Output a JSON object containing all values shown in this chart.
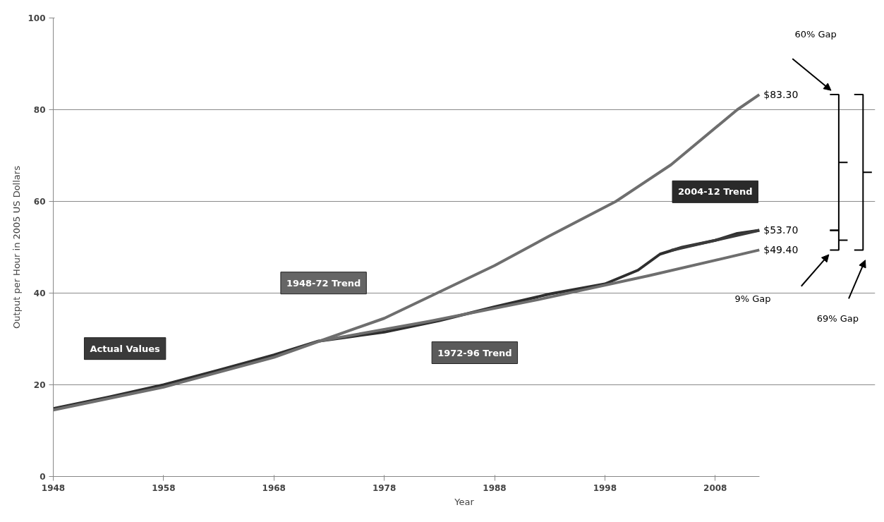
{
  "chart_data": {
    "type": "line",
    "xlabel": "Year",
    "ylabel": "Output per Hour in 2005 US Dollars",
    "xlim": [
      1948,
      2012
    ],
    "ylim": [
      0,
      100
    ],
    "xticks": [
      1948,
      1958,
      1968,
      1978,
      1988,
      1998,
      2008
    ],
    "yticks": [
      0,
      20,
      40,
      60,
      80,
      100
    ],
    "grid": "y",
    "marker": "none",
    "line_style": "solid",
    "series": [
      {
        "name": "Actual Values",
        "color": "#2e2e2e",
        "x": [
          1948,
          1953,
          1958,
          1963,
          1968,
          1972,
          1975,
          1978,
          1983,
          1988,
          1993,
          1998,
          2001,
          2003,
          2005,
          2008,
          2010,
          2012
        ],
        "values": [
          14.8,
          17.3,
          20.0,
          23.2,
          26.5,
          29.5,
          30.5,
          31.5,
          34.0,
          37.0,
          39.8,
          42.0,
          45.0,
          48.5,
          50.0,
          51.5,
          53.0,
          53.7
        ],
        "value_labels": [
          null,
          null,
          null,
          null,
          null,
          null,
          null,
          null,
          null,
          null,
          null,
          null,
          null,
          null,
          null,
          null,
          null,
          "$53.70"
        ]
      },
      {
        "name": "1948-72 Trend",
        "color": "#6e6e6e",
        "x": [
          1948,
          1958,
          1968,
          1978,
          1988,
          1993,
          1999,
          2004,
          2010,
          2012
        ],
        "values": [
          14.5,
          19.5,
          26.0,
          34.5,
          46.0,
          52.5,
          60.0,
          68.0,
          80.0,
          83.3
        ],
        "value_labels": [
          null,
          null,
          null,
          null,
          null,
          null,
          null,
          null,
          null,
          "$83.30"
        ]
      },
      {
        "name": "1972-96 Trend",
        "color": "#6e6e6e",
        "x": [
          1972,
          1982,
          1992,
          2002,
          2012
        ],
        "values": [
          29.5,
          33.8,
          38.6,
          43.8,
          49.4
        ],
        "value_labels": [
          null,
          null,
          null,
          null,
          "$49.40"
        ]
      },
      {
        "name": "2004-12 Trend",
        "color": "#3a3a3a",
        "x": [
          2004,
          2012
        ],
        "values": [
          49.3,
          53.7
        ]
      }
    ],
    "annotations": [
      "60% Gap",
      "9% Gap",
      "69% Gap"
    ]
  }
}
